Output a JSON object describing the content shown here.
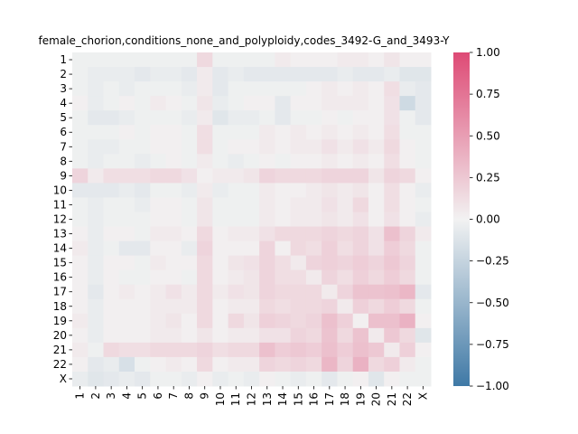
{
  "chart_data": {
    "type": "heatmap",
    "title": "female_chorion,conditions_none_and_polyploidy,codes_3492-G_and_3493-Y",
    "xlabel": "",
    "ylabel": "",
    "row_labels": [
      "1",
      "2",
      "3",
      "4",
      "5",
      "6",
      "7",
      "8",
      "9",
      "10",
      "11",
      "12",
      "13",
      "14",
      "15",
      "16",
      "17",
      "18",
      "19",
      "20",
      "21",
      "22",
      "X"
    ],
    "col_labels": [
      "1",
      "2",
      "3",
      "4",
      "5",
      "6",
      "7",
      "8",
      "9",
      "10",
      "11",
      "12",
      "13",
      "14",
      "15",
      "16",
      "17",
      "18",
      "19",
      "20",
      "21",
      "22",
      "X"
    ],
    "values": [
      [
        -0.02,
        -0.02,
        -0.02,
        -0.02,
        -0.02,
        -0.02,
        -0.02,
        -0.02,
        0.15,
        -0.02,
        -0.02,
        -0.02,
        -0.02,
        0.05,
        0.02,
        0.02,
        0.02,
        0.05,
        0.05,
        0.02,
        0.08,
        0.02,
        0.02
      ],
      [
        -0.02,
        -0.05,
        -0.05,
        -0.05,
        -0.08,
        -0.05,
        -0.05,
        -0.08,
        0.05,
        -0.08,
        -0.05,
        -0.08,
        -0.08,
        -0.08,
        -0.08,
        -0.08,
        -0.08,
        -0.05,
        -0.08,
        -0.08,
        -0.05,
        -0.1,
        -0.1
      ],
      [
        -0.02,
        -0.05,
        -0.02,
        -0.05,
        -0.02,
        -0.02,
        -0.02,
        -0.05,
        0.05,
        -0.08,
        -0.02,
        -0.02,
        -0.02,
        -0.02,
        -0.02,
        0.02,
        0.05,
        0.02,
        0.05,
        0.02,
        0.12,
        -0.05,
        -0.08
      ],
      [
        0.02,
        -0.05,
        -0.02,
        0.02,
        -0.02,
        0.05,
        0.02,
        -0.02,
        0.08,
        -0.05,
        -0.02,
        0.02,
        0.02,
        -0.08,
        0.02,
        0.02,
        0.05,
        0.05,
        0.05,
        0.02,
        0.1,
        -0.2,
        -0.08
      ],
      [
        -0.02,
        -0.08,
        -0.08,
        -0.05,
        -0.02,
        -0.02,
        -0.02,
        -0.05,
        0.05,
        -0.1,
        -0.05,
        -0.05,
        -0.02,
        -0.08,
        -0.02,
        -0.02,
        0.02,
        -0.02,
        0.02,
        0.02,
        0.1,
        -0.02,
        -0.08
      ],
      [
        -0.02,
        -0.02,
        -0.02,
        0.02,
        -0.02,
        0.02,
        0.02,
        -0.02,
        0.12,
        -0.02,
        -0.02,
        -0.02,
        0.05,
        0.02,
        0.05,
        0.02,
        0.05,
        0.02,
        0.05,
        0.02,
        0.12,
        -0.02,
        -0.02
      ],
      [
        -0.02,
        -0.05,
        -0.05,
        -0.02,
        -0.02,
        0.02,
        0.02,
        -0.02,
        0.12,
        -0.02,
        0.02,
        0.02,
        0.05,
        0.02,
        0.05,
        0.05,
        0.1,
        0.05,
        0.1,
        0.05,
        0.15,
        0.02,
        -0.02
      ],
      [
        -0.02,
        -0.05,
        -0.02,
        -0.02,
        -0.05,
        -0.02,
        0.02,
        -0.02,
        0.05,
        -0.02,
        -0.05,
        -0.02,
        0.02,
        -0.02,
        0.02,
        0.02,
        0.05,
        0.02,
        0.05,
        0.02,
        0.12,
        0.02,
        -0.02
      ],
      [
        0.18,
        0.05,
        0.12,
        0.12,
        0.12,
        0.15,
        0.15,
        0.1,
        0.02,
        0.05,
        0.05,
        0.08,
        0.18,
        0.15,
        0.15,
        0.15,
        0.18,
        0.18,
        0.18,
        0.08,
        0.18,
        0.15,
        0.02
      ],
      [
        -0.08,
        -0.08,
        -0.08,
        -0.05,
        -0.08,
        -0.02,
        -0.02,
        -0.05,
        0.05,
        -0.05,
        -0.02,
        -0.02,
        0.05,
        0.02,
        0.02,
        0.05,
        0.08,
        0.05,
        0.08,
        0.02,
        0.12,
        0.02,
        -0.05
      ],
      [
        -0.02,
        -0.05,
        -0.02,
        -0.02,
        -0.05,
        0.02,
        0.02,
        -0.02,
        0.08,
        -0.02,
        -0.02,
        -0.02,
        0.05,
        0.02,
        0.05,
        0.05,
        0.1,
        0.05,
        0.15,
        0.02,
        0.12,
        0.02,
        -0.02
      ],
      [
        -0.02,
        -0.05,
        -0.02,
        -0.02,
        -0.02,
        0.02,
        0.02,
        -0.02,
        0.08,
        -0.02,
        -0.02,
        -0.02,
        0.05,
        0.02,
        0.05,
        0.05,
        0.08,
        0.05,
        0.1,
        0.02,
        0.1,
        0.02,
        -0.05
      ],
      [
        0.02,
        -0.05,
        0.02,
        0.02,
        -0.02,
        0.05,
        0.05,
        0.02,
        0.15,
        0.02,
        0.05,
        0.05,
        0.1,
        0.15,
        0.15,
        0.15,
        0.18,
        0.15,
        0.18,
        0.1,
        0.3,
        0.18,
        0.05
      ],
      [
        0.05,
        -0.05,
        -0.02,
        -0.08,
        -0.08,
        0.02,
        0.02,
        -0.05,
        0.18,
        0.02,
        0.02,
        0.02,
        0.18,
        0.02,
        0.15,
        0.12,
        0.2,
        0.12,
        0.18,
        0.1,
        0.22,
        0.15,
        -0.02
      ],
      [
        0.02,
        -0.05,
        0.02,
        0.02,
        -0.02,
        0.05,
        0.02,
        0.02,
        0.15,
        0.02,
        0.08,
        0.1,
        0.18,
        0.12,
        0.05,
        0.18,
        0.2,
        0.18,
        0.22,
        0.18,
        0.25,
        0.18,
        -0.02
      ],
      [
        0.02,
        -0.05,
        0.02,
        -0.02,
        -0.02,
        0.02,
        0.02,
        -0.02,
        0.15,
        0.02,
        0.05,
        0.08,
        0.18,
        0.12,
        0.12,
        0.05,
        0.18,
        0.12,
        0.2,
        0.15,
        0.22,
        0.15,
        -0.02
      ],
      [
        0.02,
        -0.08,
        0.02,
        0.05,
        0.02,
        0.05,
        0.1,
        0.05,
        0.15,
        0.05,
        0.1,
        0.08,
        0.18,
        0.15,
        0.15,
        0.15,
        0.05,
        0.18,
        0.28,
        0.28,
        0.3,
        0.35,
        -0.08
      ],
      [
        0.02,
        -0.05,
        0.02,
        0.02,
        0.02,
        0.05,
        0.05,
        0.05,
        0.15,
        0.02,
        0.05,
        0.05,
        0.15,
        0.12,
        0.15,
        0.15,
        0.18,
        0.05,
        0.2,
        0.15,
        0.22,
        0.15,
        -0.02
      ],
      [
        0.05,
        -0.05,
        0.02,
        0.02,
        0.02,
        0.05,
        0.08,
        0.02,
        0.15,
        0.02,
        0.15,
        0.08,
        0.2,
        0.18,
        0.15,
        0.18,
        0.3,
        0.2,
        0.02,
        0.3,
        0.3,
        0.38,
        0.02
      ],
      [
        0.02,
        -0.05,
        0.02,
        0.02,
        0.02,
        0.05,
        0.05,
        0.02,
        0.08,
        0.02,
        0.05,
        0.05,
        0.1,
        0.1,
        0.18,
        0.15,
        0.28,
        0.15,
        0.28,
        0.05,
        0.25,
        0.15,
        -0.1
      ],
      [
        0.05,
        -0.02,
        0.15,
        0.12,
        0.12,
        0.15,
        0.15,
        0.15,
        0.18,
        0.12,
        0.15,
        0.15,
        0.3,
        0.22,
        0.25,
        0.22,
        0.3,
        0.22,
        0.3,
        0.25,
        0.05,
        0.2,
        0.02
      ],
      [
        0.02,
        -0.08,
        -0.05,
        -0.15,
        -0.02,
        0.02,
        0.05,
        0.02,
        0.15,
        0.02,
        0.05,
        0.05,
        0.18,
        0.15,
        0.18,
        0.15,
        0.35,
        0.18,
        0.38,
        0.15,
        0.2,
        0.05,
        -0.02
      ],
      [
        -0.05,
        -0.1,
        -0.08,
        -0.05,
        -0.08,
        -0.02,
        -0.02,
        -0.05,
        0.02,
        -0.05,
        -0.02,
        -0.05,
        0.02,
        -0.02,
        -0.05,
        -0.02,
        -0.08,
        -0.02,
        0.02,
        -0.1,
        0.02,
        -0.02,
        -0.02
      ]
    ],
    "vmin": -1.0,
    "vmax": 1.0,
    "colorbar_ticks": [
      "1.00",
      "0.75",
      "0.50",
      "0.25",
      "0.00",
      "−0.25",
      "−0.50",
      "−0.75",
      "−1.00"
    ],
    "colormap": {
      "negative_end": "#3f79a6",
      "center": "#f2f2f2",
      "positive_end": "#de4a75"
    },
    "grid": false,
    "legend": "none"
  }
}
